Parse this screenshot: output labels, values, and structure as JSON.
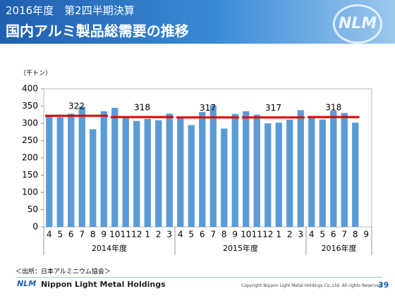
{
  "header": {
    "subtitle": "2016年度　第2四半期決算",
    "title": "国内アルミ製品総需要の推移",
    "logo": "NLM"
  },
  "chart_data": {
    "type": "bar",
    "y_label": "（千トン）",
    "categories": [
      "4",
      "5",
      "6",
      "7",
      "8",
      "9",
      "10",
      "11",
      "12",
      "1",
      "2",
      "3",
      "4",
      "5",
      "6",
      "7",
      "8",
      "9",
      "10",
      "11",
      "12",
      "1",
      "2",
      "3",
      "4",
      "5",
      "6",
      "7",
      "8",
      "9"
    ],
    "values": [
      322,
      318,
      328,
      348,
      283,
      335,
      345,
      315,
      307,
      313,
      309,
      328,
      319,
      295,
      333,
      352,
      285,
      327,
      335,
      325,
      300,
      302,
      311,
      338,
      321,
      311,
      337,
      330,
      302,
      null
    ],
    "color": "#5b9bd5",
    "fiscal_years": [
      "2014年度",
      "2015年度",
      "2016年度"
    ],
    "averages": [
      322,
      318,
      317,
      317,
      318
    ],
    "average_color": "#e00000",
    "ylim": [
      0,
      400
    ],
    "yticks": [
      0,
      50,
      100,
      150,
      200,
      250,
      300,
      350,
      400
    ],
    "grid": false
  },
  "footer": {
    "source": "＜出所：日本アルミニウム協会＞",
    "logo": "NLM",
    "company": "Nippon Light Metal Holdings",
    "copyright": "Copyright Nippon Light Metal Holdings Co.,Ltd. All rights Reserved.",
    "page": "39"
  }
}
